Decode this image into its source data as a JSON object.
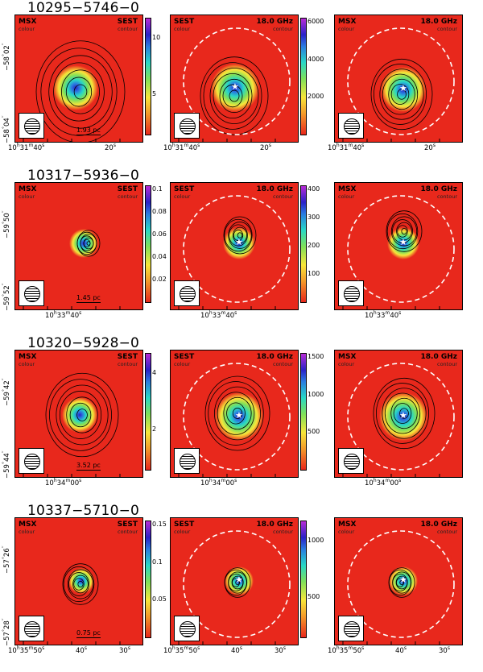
{
  "rows": [
    {
      "source": "10295−5746−0",
      "scale_bar": "1.93 pc",
      "colorbar_a": [
        "10",
        "5"
      ],
      "colorbar_b": [
        "6000",
        "4000",
        "2000"
      ],
      "ra_a": [
        "10h31m40s",
        "20s"
      ],
      "ra_b": [
        "10h31m40s",
        "20s"
      ],
      "ra_c": [
        "10h31m40s",
        "20s"
      ],
      "dec": [
        "−58°02′′",
        "−58°04′′"
      ]
    },
    {
      "source": "10317−5936−0",
      "scale_bar": "1.45 pc",
      "colorbar_a": [
        "0.1",
        "0.08",
        "0.06",
        "0.04",
        "0.02"
      ],
      "colorbar_b": [
        "400",
        "300",
        "200",
        "100"
      ],
      "ra_a": [
        "10h33m40s"
      ],
      "ra_b": [
        "10h33m40s"
      ],
      "ra_c": [
        "10h33m40s"
      ],
      "dec": [
        "−59°50′′",
        "−59°52′′"
      ]
    },
    {
      "source": "10320−5928−0",
      "scale_bar": "3.52 pc",
      "colorbar_a": [
        "4",
        "2"
      ],
      "colorbar_b": [
        "1500",
        "1000",
        "500"
      ],
      "ra_a": [
        "10h34m00s"
      ],
      "ra_b": [
        "10h34m00s"
      ],
      "ra_c": [
        "10h34m00s"
      ],
      "dec": [
        "−59°42′′",
        "−59°44′′"
      ]
    },
    {
      "source": "10337−5710−0",
      "scale_bar": "0.75 pc",
      "colorbar_a": [
        "0.15",
        "0.1",
        "0.05"
      ],
      "colorbar_b": [
        "1000",
        "500"
      ],
      "ra_a": [
        "10h35m50s",
        "40s",
        "30s"
      ],
      "ra_b": [
        "10h35m50s",
        "40s",
        "30s"
      ],
      "ra_c": [
        "10h35m50s",
        "40s",
        "30s"
      ],
      "dec": [
        "−57°26′′",
        "−57°28′′"
      ]
    }
  ],
  "panel_labels": {
    "a": {
      "left": "MSX",
      "left_sub": "colour",
      "right": "SEST",
      "right_sub": "contour"
    },
    "b": {
      "left": "SEST",
      "left_sub": "colour",
      "right": "18.0 GHz",
      "right_sub": "contour"
    },
    "c": {
      "left": "MSX",
      "left_sub": "colour",
      "right": "18.0 GHz",
      "right_sub": "contour"
    }
  },
  "colormap": [
    "#e8281c",
    "#f7e63a",
    "#7ee05a",
    "#28d7c6",
    "#2a7be0",
    "#2a22c8",
    "#b82bd6"
  ]
}
